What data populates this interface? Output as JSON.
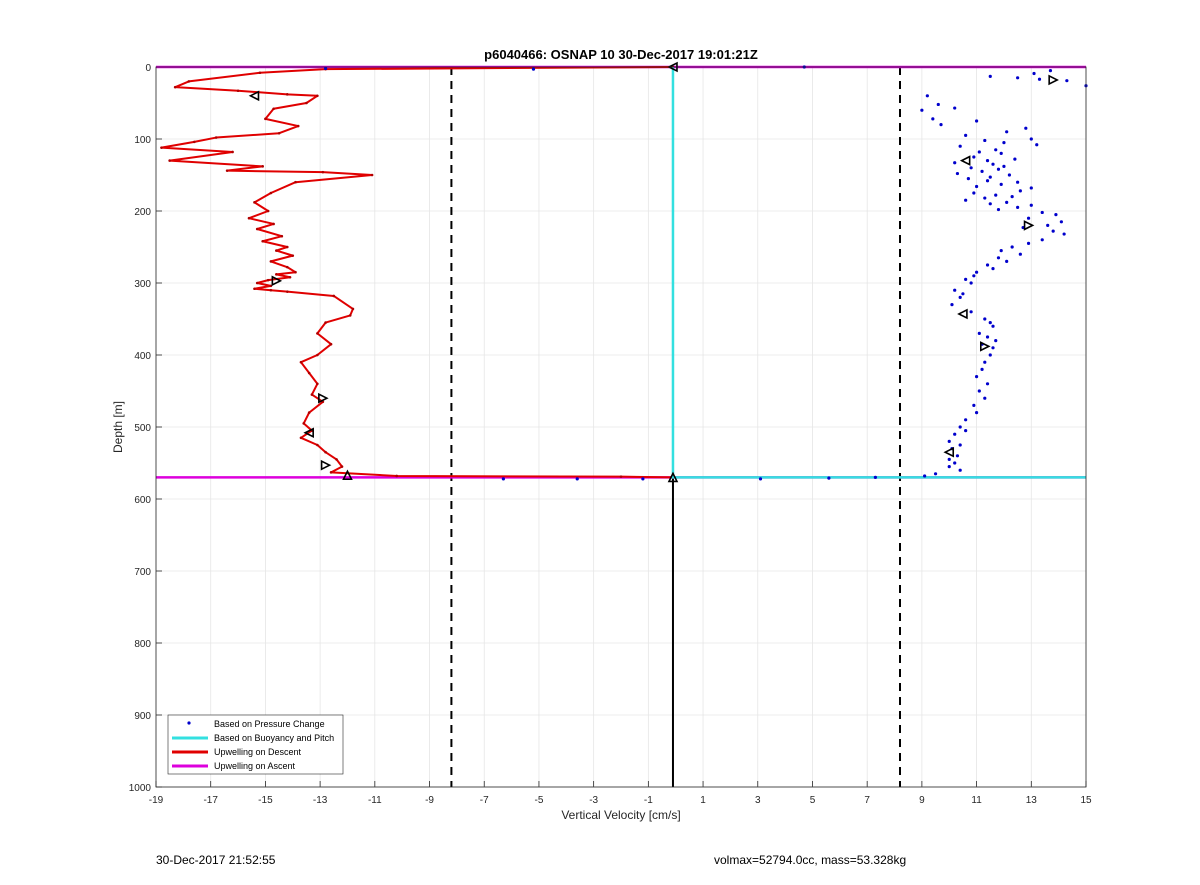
{
  "chart_data": {
    "type": "scatter",
    "title": "p6040466: OSNAP 10 30-Dec-2017 19:01:21Z",
    "xlabel": "Vertical Velocity [cm/s]",
    "ylabel": "Depth [m]",
    "xlim": [
      -19,
      15
    ],
    "ylim": [
      0,
      1000
    ],
    "y_reversed": true,
    "grid": true,
    "legend_position": "bottom-left",
    "x_ticks": [
      -19,
      -17,
      -15,
      -13,
      -11,
      -9,
      -7,
      -5,
      -3,
      -1,
      1,
      3,
      5,
      7,
      9,
      11,
      13,
      15
    ],
    "y_ticks": [
      0,
      100,
      200,
      300,
      400,
      500,
      600,
      700,
      800,
      900,
      1000
    ],
    "reference_lines": {
      "dashed_x": [
        -8.2,
        8.2
      ],
      "solid_x": -0.1,
      "solid_x_depth_range": [
        570,
        1000
      ],
      "color": "#000000"
    },
    "series": [
      {
        "name": "Based on Pressure Change",
        "style": "dots",
        "color": "#0000cc",
        "x": [
          4.7,
          -12.8,
          -5.2,
          13.7,
          13.1,
          11.5,
          12.5,
          13.3,
          14.3,
          15.0,
          9.2,
          9.6,
          10.2,
          9.0,
          9.4,
          11.0,
          9.7,
          12.8,
          12.1,
          10.6,
          13.0,
          11.3,
          12.0,
          13.2,
          10.4,
          11.7,
          11.1,
          11.9,
          10.9,
          12.4,
          11.4,
          10.2,
          11.6,
          12.0,
          10.8,
          11.8,
          11.2,
          10.3,
          12.2,
          11.5,
          10.7,
          11.4,
          12.5,
          11.9,
          11.0,
          13.0,
          12.6,
          10.9,
          11.7,
          12.3,
          11.3,
          10.6,
          12.1,
          11.5,
          13.0,
          12.5,
          11.8,
          13.4,
          13.9,
          12.9,
          14.1,
          13.6,
          12.7,
          13.8,
          14.2,
          13.4,
          12.9,
          12.3,
          11.9,
          12.6,
          11.8,
          12.1,
          11.4,
          11.6,
          11.0,
          10.9,
          10.6,
          10.8,
          10.2,
          10.5,
          10.4,
          10.1,
          10.8,
          11.3,
          11.5,
          11.6,
          11.1,
          11.4,
          11.7,
          11.2,
          11.6,
          11.5,
          11.3,
          11.2,
          11.0,
          11.4,
          11.1,
          11.3,
          10.9,
          11.0,
          10.6,
          10.4,
          10.6,
          10.2,
          10.0,
          10.4,
          10.1,
          10.3,
          10.0,
          10.2,
          10.0,
          10.4,
          9.5,
          9.1,
          7.3,
          5.6,
          3.1,
          -3.6,
          -1.2,
          -6.3
        ],
        "y": [
          0,
          2,
          3,
          5,
          9,
          13,
          15,
          17,
          19,
          26,
          40,
          52,
          57,
          60,
          72,
          75,
          80,
          85,
          90,
          95,
          100,
          102,
          105,
          108,
          110,
          115,
          118,
          120,
          125,
          128,
          130,
          133,
          135,
          138,
          140,
          142,
          145,
          148,
          150,
          153,
          155,
          158,
          160,
          163,
          166,
          168,
          172,
          175,
          178,
          180,
          182,
          185,
          188,
          190,
          192,
          195,
          198,
          202,
          205,
          210,
          215,
          220,
          223,
          228,
          232,
          240,
          245,
          250,
          255,
          260,
          265,
          270,
          275,
          280,
          285,
          290,
          295,
          300,
          310,
          315,
          320,
          330,
          340,
          350,
          355,
          360,
          370,
          375,
          380,
          385,
          390,
          400,
          410,
          420,
          430,
          440,
          450,
          460,
          470,
          480,
          490,
          500,
          505,
          510,
          520,
          525,
          530,
          540,
          545,
          550,
          555,
          560,
          565,
          568,
          570,
          571,
          572,
          572,
          572,
          572
        ]
      },
      {
        "name": "Based on Buoyancy and Pitch",
        "style": "line",
        "color": "#33e0e0",
        "x": [
          -0.1,
          -0.1,
          -0.1,
          15.0
        ],
        "y": [
          0,
          568,
          570,
          570
        ]
      },
      {
        "name": "Upwelling on Descent",
        "style": "line",
        "color": "#e00000",
        "x": [
          -0.1,
          -12.8,
          -15.2,
          -17.8,
          -18.3,
          -16.0,
          -14.2,
          -13.1,
          -13.5,
          -14.7,
          -15.0,
          -13.8,
          -14.5,
          -16.8,
          -17.6,
          -18.8,
          -16.2,
          -18.5,
          -15.1,
          -16.4,
          -12.9,
          -11.1,
          -13.9,
          -14.8,
          -15.4,
          -14.9,
          -15.6,
          -14.7,
          -15.3,
          -14.4,
          -15.1,
          -14.2,
          -14.6,
          -14.0,
          -14.8,
          -14.2,
          -13.9,
          -14.6,
          -14.1,
          -14.9,
          -15.3,
          -14.8,
          -15.4,
          -14.8,
          -14.2,
          -12.5,
          -11.8,
          -11.9,
          -12.8,
          -13.1,
          -12.6,
          -13.1,
          -13.7,
          -13.4,
          -13.1,
          -13.3,
          -12.9,
          -13.4,
          -13.6,
          -13.3,
          -13.7,
          -13.1,
          -12.8,
          -12.4,
          -12.2,
          -12.6,
          -10.2,
          -2.0,
          -0.1
        ],
        "y": [
          0,
          3,
          8,
          20,
          28,
          33,
          38,
          40,
          50,
          58,
          72,
          82,
          92,
          98,
          104,
          112,
          118,
          130,
          138,
          144,
          146,
          150,
          160,
          175,
          188,
          200,
          210,
          218,
          225,
          235,
          242,
          250,
          255,
          262,
          270,
          278,
          285,
          288,
          292,
          296,
          300,
          304,
          308,
          310,
          312,
          318,
          336,
          345,
          355,
          370,
          385,
          400,
          410,
          425,
          440,
          455,
          465,
          480,
          495,
          505,
          515,
          525,
          535,
          545,
          555,
          563,
          568,
          569,
          570
        ]
      },
      {
        "name": "Upwelling on Ascent",
        "style": "line",
        "color": "#dd00dd",
        "segments": [
          {
            "x": [
              -19,
              15
            ],
            "y": [
              0,
              0
            ]
          },
          {
            "x": [
              -19,
              15
            ],
            "y": [
              570,
              570
            ]
          }
        ]
      }
    ],
    "markers": [
      {
        "shape": "tri-left",
        "x": -15.4,
        "y": 40
      },
      {
        "shape": "tri-left",
        "x": -0.1,
        "y": 0
      },
      {
        "shape": "tri-right",
        "x": 13.8,
        "y": 18
      },
      {
        "shape": "tri-left",
        "x": 10.6,
        "y": 130
      },
      {
        "shape": "tri-right",
        "x": 12.9,
        "y": 220
      },
      {
        "shape": "tri-right",
        "x": -14.6,
        "y": 297
      },
      {
        "shape": "tri-left",
        "x": 10.5,
        "y": 343
      },
      {
        "shape": "tri-right",
        "x": 11.3,
        "y": 388
      },
      {
        "shape": "tri-right",
        "x": -12.9,
        "y": 460
      },
      {
        "shape": "tri-left",
        "x": -13.4,
        "y": 508
      },
      {
        "shape": "tri-left",
        "x": 10.0,
        "y": 535
      },
      {
        "shape": "tri-right",
        "x": -12.8,
        "y": 553
      },
      {
        "shape": "tri-up",
        "x": -12.0,
        "y": 567
      },
      {
        "shape": "tri-up",
        "x": -0.1,
        "y": 570
      }
    ]
  },
  "footer": {
    "left": "30-Dec-2017 21:52:55",
    "right": "volmax=52794.0cc, mass=53.328kg"
  }
}
